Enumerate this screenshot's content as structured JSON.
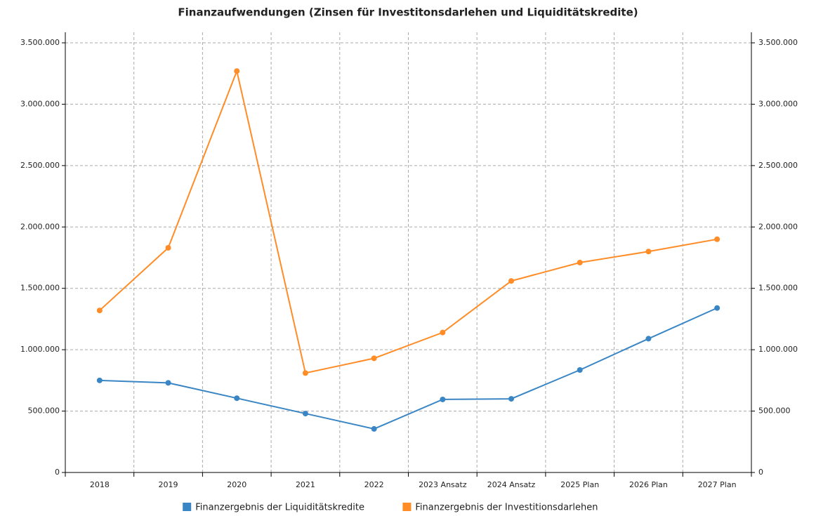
{
  "chart_data": {
    "type": "line",
    "title": "Finanzaufwendungen (Zinsen für Investitonsdarlehen und Liquiditätskredite)",
    "categories": [
      "2018",
      "2019",
      "2020",
      "2021",
      "2022",
      "2023 Ansatz",
      "2024 Ansatz",
      "2025 Plan",
      "2026 Plan",
      "2027 Plan"
    ],
    "series": [
      {
        "name": "Finanzergebnis der Liquiditätskredite",
        "color": "#3a86c4",
        "values": [
          750000,
          730000,
          605000,
          480000,
          355000,
          595000,
          600000,
          835000,
          1090000,
          1340000
        ]
      },
      {
        "name": "Finanzergebnis der Investitionsdarlehen",
        "color": "#ff8c26",
        "values": [
          1320000,
          1830000,
          3270000,
          810000,
          930000,
          1140000,
          1560000,
          1710000,
          1800000,
          1900000
        ]
      }
    ],
    "ylim": [
      0,
      3500000
    ],
    "yticks": [
      0,
      {
        "value": 500000,
        "label": "500.000"
      },
      {
        "value": 1000000,
        "label": "1.000.000"
      },
      {
        "value": 1500000,
        "label": "1.500.000"
      },
      {
        "value": 2000000,
        "label": "2.000.000"
      },
      {
        "value": 2500000,
        "label": "2.500.000"
      },
      {
        "value": 3000000,
        "label": "3.000.000"
      },
      {
        "value": 3500000,
        "label": "3.500.000"
      }
    ],
    "y2lim": [
      0,
      3500000
    ],
    "y2ticks": [
      0,
      {
        "value": 500000,
        "label": "500.000"
      },
      {
        "value": 1000000,
        "label": "1.000.000"
      },
      {
        "value": 1500000,
        "label": "1.500.000"
      },
      {
        "value": 2000000,
        "label": "2.000.000"
      },
      {
        "value": 2500000,
        "label": "2.500.000"
      },
      {
        "value": 3000000,
        "label": "3.000.000"
      },
      {
        "value": 3500000,
        "label": "3.500.000"
      }
    ],
    "grid": true,
    "legend": "bottom"
  }
}
